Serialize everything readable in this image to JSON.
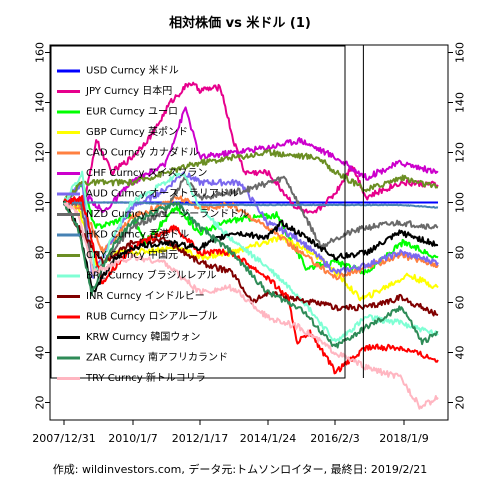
{
  "chart_data": {
    "type": "line",
    "title": "相対株価 vs 米ドル (1)",
    "footer": "作成: wildinvestors.com, データ元:トムソンロイター, 最終日: 2019/2/21",
    "x_ticks": [
      "2007/12/31",
      "2010/1/7",
      "2012/1/17",
      "2014/1/24",
      "2016/2/3",
      "2018/1/9"
    ],
    "x_range": [
      "2007-12-31",
      "2019-02-21"
    ],
    "ylim": [
      13,
      163
    ],
    "y_ticks": [
      20,
      40,
      60,
      80,
      100,
      120,
      140,
      160
    ],
    "grid": false,
    "legend_position": "top-left",
    "vertical_marker": "2016-12-01",
    "series": [
      {
        "name": "USD Curncy 米ドル",
        "color": "#0000ff",
        "points": [
          [
            "2007-12-31",
            100
          ],
          [
            "2019-02-21",
            100
          ]
        ]
      },
      {
        "name": "JPY Curncy 日本円",
        "color": "#e6008c",
        "points": [
          [
            "2007-12-31",
            100
          ],
          [
            "2008-08-01",
            98
          ],
          [
            "2008-12-15",
            125
          ],
          [
            "2009-06-01",
            112
          ],
          [
            "2010-01-07",
            118
          ],
          [
            "2010-09-01",
            128
          ],
          [
            "2011-03-01",
            140
          ],
          [
            "2011-10-01",
            148
          ],
          [
            "2012-01-17",
            145
          ],
          [
            "2012-09-01",
            146
          ],
          [
            "2013-01-15",
            125
          ],
          [
            "2013-05-20",
            112
          ],
          [
            "2014-01-24",
            112
          ],
          [
            "2014-12-01",
            98
          ],
          [
            "2015-06-01",
            95
          ],
          [
            "2016-02-03",
            104
          ],
          [
            "2016-08-01",
            115
          ],
          [
            "2017-01-01",
            102
          ],
          [
            "2018-01-09",
            108
          ],
          [
            "2019-02-21",
            107
          ]
        ]
      },
      {
        "name": "EUR Curncy ユーロ",
        "color": "#00ff00",
        "points": [
          [
            "2007-12-31",
            100
          ],
          [
            "2008-07-15",
            108
          ],
          [
            "2008-12-01",
            90
          ],
          [
            "2009-06-01",
            92
          ],
          [
            "2010-01-07",
            95
          ],
          [
            "2010-06-01",
            84
          ],
          [
            "2011-05-01",
            98
          ],
          [
            "2012-01-17",
            88
          ],
          [
            "2013-01-01",
            93
          ],
          [
            "2014-05-01",
            95
          ],
          [
            "2015-03-15",
            74
          ],
          [
            "2016-02-03",
            76
          ],
          [
            "2017-01-01",
            72
          ],
          [
            "2018-02-01",
            84
          ],
          [
            "2019-02-21",
            78
          ]
        ]
      },
      {
        "name": "GBP Curncy 英ポンド",
        "color": "#ffff00",
        "points": [
          [
            "2007-12-31",
            100
          ],
          [
            "2008-06-01",
            98
          ],
          [
            "2009-01-15",
            72
          ],
          [
            "2009-06-01",
            80
          ],
          [
            "2010-01-07",
            80
          ],
          [
            "2011-06-01",
            82
          ],
          [
            "2012-01-17",
            78
          ],
          [
            "2013-01-01",
            80
          ],
          [
            "2014-07-01",
            86
          ],
          [
            "2015-06-01",
            80
          ],
          [
            "2016-02-03",
            72
          ],
          [
            "2016-10-15",
            62
          ],
          [
            "2017-01-01",
            62
          ],
          [
            "2018-04-01",
            71
          ],
          [
            "2019-02-21",
            66
          ]
        ]
      },
      {
        "name": "CAD Curncy カナダドル",
        "color": "#ff8040",
        "points": [
          [
            "2007-12-31",
            100
          ],
          [
            "2008-08-01",
            98
          ],
          [
            "2009-03-01",
            80
          ],
          [
            "2010-01-07",
            94
          ],
          [
            "2011-06-01",
            102
          ],
          [
            "2012-01-17",
            98
          ],
          [
            "2013-01-01",
            99
          ],
          [
            "2014-01-24",
            90
          ],
          [
            "2015-01-15",
            80
          ],
          [
            "2016-02-03",
            70
          ],
          [
            "2017-01-01",
            74
          ],
          [
            "2018-01-09",
            79
          ],
          [
            "2019-02-21",
            75
          ]
        ]
      },
      {
        "name": "CHF Curncy スイスフラン",
        "color": "#cc00cc",
        "points": [
          [
            "2007-12-31",
            100
          ],
          [
            "2008-10-01",
            102
          ],
          [
            "2009-03-01",
            96
          ],
          [
            "2010-01-07",
            108
          ],
          [
            "2011-01-01",
            115
          ],
          [
            "2011-08-15",
            138
          ],
          [
            "2012-01-17",
            118
          ],
          [
            "2013-01-01",
            120
          ],
          [
            "2014-01-24",
            122
          ],
          [
            "2015-01-15",
            125
          ],
          [
            "2016-02-03",
            118
          ],
          [
            "2017-01-01",
            110
          ],
          [
            "2018-01-09",
            116
          ],
          [
            "2019-02-21",
            112
          ]
        ]
      },
      {
        "name": "AUD Curncy オーストラリアドル",
        "color": "#7b68ee",
        "points": [
          [
            "2007-12-31",
            100
          ],
          [
            "2008-07-15",
            108
          ],
          [
            "2008-11-01",
            70
          ],
          [
            "2009-06-01",
            85
          ],
          [
            "2010-01-07",
            98
          ],
          [
            "2011-01-01",
            105
          ],
          [
            "2011-07-15",
            112
          ],
          [
            "2012-01-17",
            108
          ],
          [
            "2013-04-01",
            108
          ],
          [
            "2014-01-24",
            92
          ],
          [
            "2015-01-15",
            85
          ],
          [
            "2016-02-03",
            72
          ],
          [
            "2017-01-01",
            75
          ],
          [
            "2018-01-09",
            80
          ],
          [
            "2019-02-21",
            76
          ]
        ]
      },
      {
        "name": "NZD Curncy ニュージーランドドル",
        "color": "#696969",
        "points": [
          [
            "2007-12-31",
            100
          ],
          [
            "2008-07-01",
            100
          ],
          [
            "2008-11-15",
            72
          ],
          [
            "2009-06-01",
            80
          ],
          [
            "2010-01-07",
            90
          ],
          [
            "2011-01-01",
            96
          ],
          [
            "2011-08-01",
            110
          ],
          [
            "2012-01-17",
            102
          ],
          [
            "2013-06-01",
            105
          ],
          [
            "2014-08-01",
            110
          ],
          [
            "2015-09-01",
            82
          ],
          [
            "2016-02-03",
            86
          ],
          [
            "2017-01-01",
            90
          ],
          [
            "2018-01-09",
            92
          ],
          [
            "2019-02-21",
            90
          ]
        ]
      },
      {
        "name": "HKD Curncy 香港ドル",
        "color": "#4682b4",
        "points": [
          [
            "2007-12-31",
            100
          ],
          [
            "2008-06-01",
            100
          ],
          [
            "2010-01-07",
            100
          ],
          [
            "2012-01-17",
            99
          ],
          [
            "2014-01-24",
            99
          ],
          [
            "2016-02-03",
            99
          ],
          [
            "2018-01-09",
            99
          ],
          [
            "2019-02-21",
            98
          ]
        ]
      },
      {
        "name": "CNY Curncy 中国元",
        "color": "#6b8e23",
        "points": [
          [
            "2007-12-31",
            100
          ],
          [
            "2008-07-01",
            108
          ],
          [
            "2010-01-07",
            108
          ],
          [
            "2012-01-17",
            116
          ],
          [
            "2014-01-24",
            120
          ],
          [
            "2015-08-01",
            118
          ],
          [
            "2016-02-03",
            112
          ],
          [
            "2017-01-01",
            105
          ],
          [
            "2018-01-09",
            110
          ],
          [
            "2019-02-21",
            106
          ]
        ]
      },
      {
        "name": "BRL Curncy ブラジルレアル",
        "color": "#7fffd4",
        "points": [
          [
            "2007-12-31",
            100
          ],
          [
            "2008-07-15",
            112
          ],
          [
            "2008-12-01",
            72
          ],
          [
            "2009-06-01",
            85
          ],
          [
            "2010-01-07",
            100
          ],
          [
            "2011-07-15",
            112
          ],
          [
            "2012-01-17",
            98
          ],
          [
            "2013-01-01",
            85
          ],
          [
            "2014-01-24",
            74
          ],
          [
            "2015-01-15",
            62
          ],
          [
            "2016-02-03",
            44
          ],
          [
            "2017-01-01",
            54
          ],
          [
            "2018-01-09",
            52
          ],
          [
            "2019-02-21",
            47
          ]
        ]
      },
      {
        "name": "INR Curncy インドルピー",
        "color": "#800000",
        "points": [
          [
            "2007-12-31",
            100
          ],
          [
            "2008-06-01",
            90
          ],
          [
            "2009-03-01",
            76
          ],
          [
            "2010-01-07",
            84
          ],
          [
            "2011-01-01",
            85
          ],
          [
            "2012-01-17",
            76
          ],
          [
            "2013-01-01",
            72
          ],
          [
            "2013-08-15",
            60
          ],
          [
            "2014-01-24",
            64
          ],
          [
            "2016-02-03",
            58
          ],
          [
            "2017-01-01",
            58
          ],
          [
            "2018-01-09",
            62
          ],
          [
            "2019-02-21",
            55
          ]
        ]
      },
      {
        "name": "RUB Curncy ロシアルーブル",
        "color": "#ff0000",
        "points": [
          [
            "2007-12-31",
            100
          ],
          [
            "2008-07-15",
            102
          ],
          [
            "2009-02-15",
            68
          ],
          [
            "2010-01-07",
            82
          ],
          [
            "2011-05-01",
            90
          ],
          [
            "2012-01-17",
            80
          ],
          [
            "2013-01-01",
            80
          ],
          [
            "2014-01-24",
            70
          ],
          [
            "2014-09-01",
            62
          ],
          [
            "2014-12-15",
            44
          ],
          [
            "2015-05-01",
            48
          ],
          [
            "2016-02-03",
            32
          ],
          [
            "2017-01-01",
            42
          ],
          [
            "2018-01-09",
            42
          ],
          [
            "2019-02-21",
            37
          ]
        ]
      },
      {
        "name": "KRW Curncy 韓国ウォン",
        "color": "#000000",
        "points": [
          [
            "2007-12-31",
            100
          ],
          [
            "2008-06-01",
            90
          ],
          [
            "2008-11-15",
            64
          ],
          [
            "2009-06-01",
            76
          ],
          [
            "2010-01-07",
            82
          ],
          [
            "2011-01-01",
            84
          ],
          [
            "2012-01-17",
            82
          ],
          [
            "2013-01-01",
            88
          ],
          [
            "2014-01-24",
            86
          ],
          [
            "2014-07-01",
            92
          ],
          [
            "2015-06-01",
            84
          ],
          [
            "2016-02-03",
            78
          ],
          [
            "2017-01-01",
            80
          ],
          [
            "2018-01-09",
            88
          ],
          [
            "2019-02-21",
            83
          ]
        ]
      },
      {
        "name": "ZAR Curncy 南アフリカランド",
        "color": "#2e8b57",
        "points": [
          [
            "2007-12-31",
            100
          ],
          [
            "2008-06-01",
            90
          ],
          [
            "2008-10-25",
            64
          ],
          [
            "2009-06-01",
            82
          ],
          [
            "2010-01-07",
            92
          ],
          [
            "2011-05-01",
            100
          ],
          [
            "2012-01-17",
            90
          ],
          [
            "2013-01-01",
            80
          ],
          [
            "2014-01-24",
            64
          ],
          [
            "2015-01-15",
            58
          ],
          [
            "2016-01-20",
            42
          ],
          [
            "2017-01-01",
            50
          ],
          [
            "2018-02-01",
            58
          ],
          [
            "2018-09-01",
            44
          ],
          [
            "2019-02-21",
            48
          ]
        ]
      },
      {
        "name": "TRY Curncy 新トルコリラ",
        "color": "#ffb6c1",
        "points": [
          [
            "2007-12-31",
            100
          ],
          [
            "2008-06-01",
            95
          ],
          [
            "2008-11-15",
            72
          ],
          [
            "2009-06-01",
            75
          ],
          [
            "2010-01-07",
            78
          ],
          [
            "2011-01-01",
            76
          ],
          [
            "2012-01-17",
            64
          ],
          [
            "2013-01-01",
            66
          ],
          [
            "2014-01-24",
            54
          ],
          [
            "2015-01-15",
            50
          ],
          [
            "2016-02-03",
            40
          ],
          [
            "2017-01-01",
            34
          ],
          [
            "2018-01-09",
            30
          ],
          [
            "2018-08-15",
            18
          ],
          [
            "2019-02-21",
            22
          ]
        ]
      }
    ]
  }
}
